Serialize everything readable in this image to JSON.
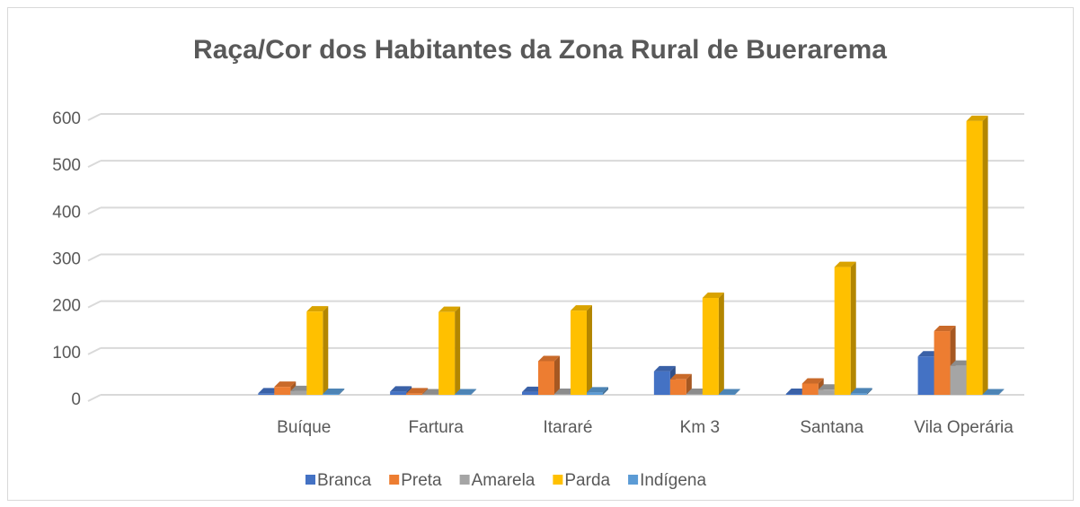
{
  "chart_data": {
    "type": "bar3d",
    "title": "Raça/Cor dos Habitantes da Zona Rural  de Buerarema",
    "categories": [
      null,
      "Buíque",
      "Fartura",
      "Itararé",
      "Km 3",
      "Santana",
      "Vila Operária"
    ],
    "series": [
      {
        "name": "Branca",
        "color": "#4472c4",
        "values": [
          null,
          3,
          7,
          6,
          50,
          2,
          82
        ]
      },
      {
        "name": "Preta",
        "color": "#ed7d31",
        "values": [
          null,
          17,
          3,
          72,
          33,
          24,
          136
        ]
      },
      {
        "name": "Amarela",
        "color": "#a5a5a5",
        "values": [
          null,
          8,
          1,
          2,
          2,
          11,
          62
        ]
      },
      {
        "name": "Parda",
        "color": "#ffc000",
        "values": [
          null,
          178,
          177,
          180,
          207,
          273,
          585
        ]
      },
      {
        "name": "Indígena",
        "color": "#5b9bd5",
        "values": [
          null,
          2,
          1,
          5,
          1,
          3,
          1
        ]
      }
    ],
    "ylim": [
      0,
      600
    ],
    "yticks": [
      0,
      100,
      200,
      300,
      400,
      500,
      600
    ],
    "grid": true,
    "legend": "bottom"
  }
}
